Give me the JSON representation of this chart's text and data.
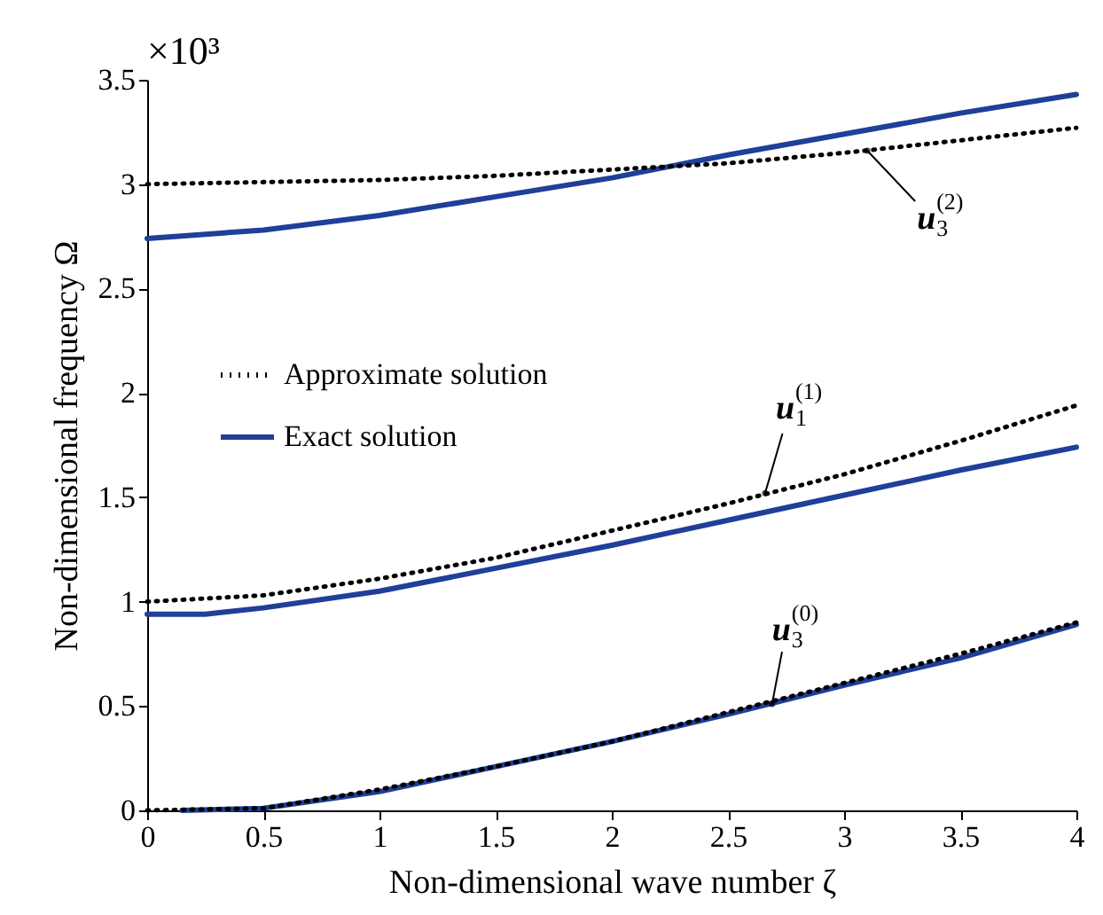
{
  "chart_data": {
    "type": "line",
    "xlabel": "Non-dimensional wave number ζ",
    "ylabel": "Non-dimensional frequency Ω",
    "x": [
      0,
      0.5,
      1,
      1.5,
      2,
      2.5,
      3,
      3.5,
      4
    ],
    "series": [
      {
        "name": "Approximate solution",
        "color": "#000000",
        "line_style": "dotted",
        "values": [
          3.0,
          3.01,
          3.02,
          3.04,
          3.07,
          3.1,
          3.15,
          3.21,
          3.27
        ]
      },
      {
        "name": "Exact solution",
        "color": "#1f3f99",
        "line_style": "solid",
        "values": [
          2.74,
          2.78,
          2.85,
          2.94,
          3.03,
          3.14,
          3.24,
          3.34,
          3.43
        ]
      },
      {
        "color": "#000000",
        "line_style": "dotted",
        "values": [
          1.0,
          1.03,
          1.11,
          1.21,
          1.34,
          1.47,
          1.61,
          1.77,
          1.94
        ]
      },
      {
        "color": "#1f3f99",
        "line_style": "solid",
        "x": [
          0,
          0.25,
          0.5,
          1,
          1.5,
          2,
          2.5,
          3,
          3.5,
          4
        ],
        "values": [
          0.94,
          0.94,
          0.97,
          1.05,
          1.16,
          1.27,
          1.39,
          1.51,
          1.63,
          1.74
        ]
      },
      {
        "color": "#000000",
        "line_style": "dotted",
        "values": [
          0,
          0.01,
          0.1,
          0.21,
          0.33,
          0.47,
          0.61,
          0.75,
          0.9
        ]
      },
      {
        "color": "#1f3f99",
        "line_style": "solid",
        "x": [
          0.15,
          0.5,
          1,
          1.5,
          2,
          2.5,
          3,
          3.5,
          4
        ],
        "values": [
          0,
          0.01,
          0.09,
          0.21,
          0.33,
          0.46,
          0.6,
          0.73,
          0.89
        ]
      }
    ],
    "xlim": [
      0,
      4
    ],
    "xticks": [
      0,
      0.5,
      1,
      1.5,
      2,
      2.5,
      3,
      3.5,
      4
    ],
    "ylim": [
      0,
      3.5
    ],
    "yticks": [
      0,
      0.5,
      1,
      1.5,
      2,
      2.5,
      3,
      3.5
    ],
    "grid": false,
    "legend": "left",
    "annotations": [
      "×10³",
      {
        "text": "u$_{3}$$^{(2)}$",
        "x": 3.1,
        "y": 3.16
      },
      {
        "text": "u$_{1}$$^{(1)}$",
        "x": 2.66,
        "y": 1.52
      },
      {
        "text": "u$_{3}$$^{(0)}$",
        "x": 2.69,
        "y": 0.51
      }
    ]
  }
}
